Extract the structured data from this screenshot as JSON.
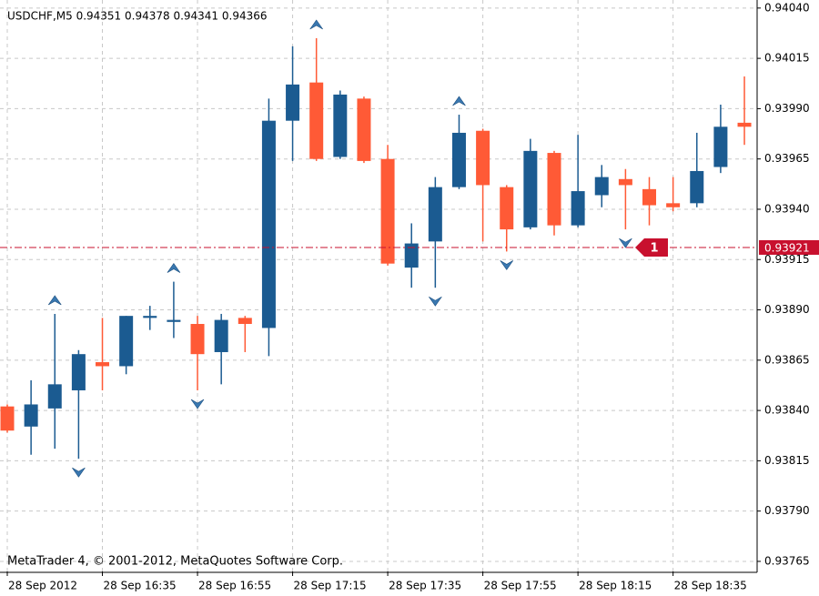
{
  "chart_data": {
    "type": "candlestick",
    "title": "USDCHF,M5  0.94351 0.94378 0.94341 0.94366",
    "footer": "MetaTrader 4, © 2001-2012, MetaQuotes Software Corp.",
    "categories": [
      "28 Sep 2012",
      null,
      null,
      null,
      "28 Sep 16:35",
      null,
      null,
      null,
      "28 Sep 16:55",
      null,
      null,
      null,
      "28 Sep 17:15",
      null,
      null,
      null,
      "28 Sep 17:35",
      null,
      null,
      null,
      "28 Sep 17:55",
      null,
      null,
      null,
      "28 Sep 18:15",
      null,
      null,
      null,
      "28 Sep 18:35",
      null,
      null,
      null
    ],
    "open": [
      0.93842,
      0.93832,
      0.93841,
      0.9385,
      0.93864,
      0.93862,
      0.93886,
      0.93884,
      0.93883,
      0.93869,
      0.93886,
      0.93881,
      0.93984,
      0.94003,
      0.93966,
      0.93995,
      0.93965,
      0.93911,
      0.93924,
      0.93951,
      0.93979,
      0.93951,
      0.93931,
      0.93968,
      0.93932,
      0.93947,
      0.93955,
      0.9395,
      0.93943,
      0.93943,
      0.93961,
      0.93983
    ],
    "high": [
      0.93843,
      0.93855,
      0.93888,
      0.9387,
      0.93886,
      0.93887,
      0.93892,
      0.93904,
      0.93887,
      0.93888,
      0.93887,
      0.93995,
      0.94021,
      0.94025,
      0.93999,
      0.93996,
      0.93972,
      0.93933,
      0.93956,
      0.93987,
      0.9398,
      0.93952,
      0.93975,
      0.93969,
      0.93977,
      0.93962,
      0.9396,
      0.93956,
      0.93956,
      0.93978,
      0.93992,
      0.94006
    ],
    "low": [
      0.93829,
      0.93818,
      0.93821,
      0.93816,
      0.9385,
      0.93858,
      0.9388,
      0.93876,
      0.9385,
      0.93853,
      0.93869,
      0.93867,
      0.93964,
      0.93964,
      0.93965,
      0.93963,
      0.93912,
      0.93901,
      0.93901,
      0.9395,
      0.93924,
      0.93919,
      0.9393,
      0.93927,
      0.93931,
      0.93941,
      0.9393,
      0.93932,
      0.93939,
      0.93941,
      0.93958,
      0.93972
    ],
    "close": [
      0.9383,
      0.93843,
      0.93853,
      0.93868,
      0.93862,
      0.93887,
      0.93887,
      0.93885,
      0.93868,
      0.93885,
      0.93883,
      0.93984,
      0.94002,
      0.93965,
      0.93997,
      0.93964,
      0.93913,
      0.93923,
      0.93951,
      0.93978,
      0.93952,
      0.9393,
      0.93969,
      0.93932,
      0.93949,
      0.93956,
      0.93952,
      0.93942,
      0.93941,
      0.93959,
      0.93981,
      0.93981
    ],
    "up_color": "#1b5b91",
    "down_color": "#ff5a36",
    "ylim": [
      0.9376,
      0.94044
    ],
    "yticks": [
      {
        "value": 0.9404,
        "label": "0.94040"
      },
      {
        "value": 0.94015,
        "label": "0.94015"
      },
      {
        "value": 0.9399,
        "label": "0.93990"
      },
      {
        "value": 0.93965,
        "label": "0.93965"
      },
      {
        "value": 0.9394,
        "label": "0.93940"
      },
      {
        "value": 0.93915,
        "label": "0.93915"
      },
      {
        "value": 0.9389,
        "label": "0.93890"
      },
      {
        "value": 0.93865,
        "label": "0.93865"
      },
      {
        "value": 0.9384,
        "label": "0.93840"
      },
      {
        "value": 0.93815,
        "label": "0.93815"
      },
      {
        "value": 0.9379,
        "label": "0.93790"
      },
      {
        "value": 0.93765,
        "label": "0.93765"
      }
    ],
    "grid": true,
    "current_price": {
      "value": 0.93921,
      "label": "0.93921"
    },
    "order_marker": "1",
    "fractals": {
      "up": [
        2,
        7,
        13,
        19
      ],
      "down": [
        3,
        8,
        18,
        21,
        26
      ]
    }
  }
}
